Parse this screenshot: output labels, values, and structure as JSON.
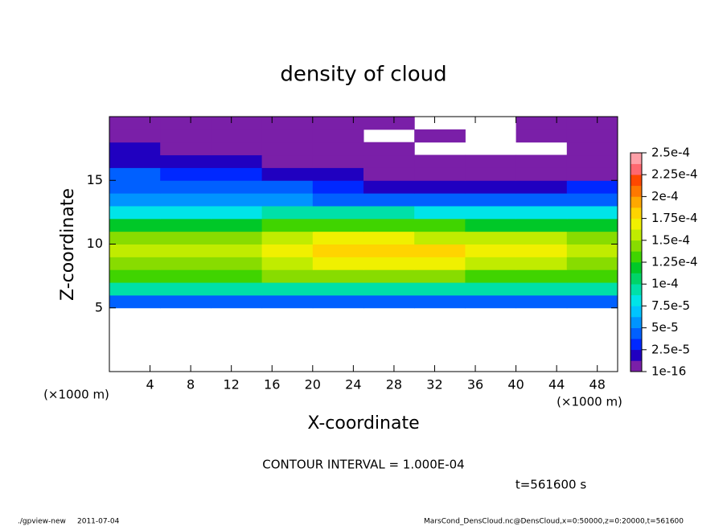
{
  "chart_data": {
    "type": "heatmap",
    "title": "density of cloud",
    "xlabel": "X-coordinate",
    "ylabel": "Z-coordinate",
    "x_unit": "(×1000 m)",
    "xlim": [
      0,
      50
    ],
    "ylim": [
      0,
      20
    ],
    "xticks": [
      4,
      8,
      12,
      16,
      20,
      24,
      28,
      32,
      36,
      40,
      44,
      48
    ],
    "yticks": [
      5,
      10,
      15
    ],
    "x": [
      2.5,
      7.5,
      12.5,
      17.5,
      22.5,
      27.5,
      32.5,
      37.5,
      42.5,
      47.5
    ],
    "y": [
      5.5,
      6.5,
      7.5,
      8.5,
      9.5,
      10.5,
      11.5,
      12.5,
      13.5,
      14.5,
      15.5,
      16.5,
      17.5,
      18.5,
      19.5
    ],
    "values": [
      [
        4e-05,
        4e-05,
        4e-05,
        4e-05,
        4e-05,
        4e-05,
        4e-05,
        4e-05,
        4e-05,
        4e-05
      ],
      [
        9e-05,
        9e-05,
        9e-05,
        9e-05,
        9e-05,
        9e-05,
        9e-05,
        9e-05,
        9e-05,
        9e-05
      ],
      [
        0.00013,
        0.00013,
        0.00013,
        0.00014,
        0.00014,
        0.00014,
        0.00014,
        0.00013,
        0.00013,
        0.00013
      ],
      [
        0.00015,
        0.00015,
        0.00015,
        0.00016,
        0.00017,
        0.00017,
        0.00017,
        0.00016,
        0.00016,
        0.00015
      ],
      [
        0.00016,
        0.00016,
        0.00016,
        0.00017,
        0.00018,
        0.00018,
        0.00018,
        0.00017,
        0.00017,
        0.00016
      ],
      [
        0.00015,
        0.00015,
        0.00015,
        0.00016,
        0.00017,
        0.00017,
        0.00016,
        0.00016,
        0.00016,
        0.00015
      ],
      [
        0.00012,
        0.00012,
        0.00012,
        0.00013,
        0.00013,
        0.00013,
        0.00013,
        0.00012,
        0.00012,
        0.00012
      ],
      [
        8e-05,
        8e-05,
        8e-05,
        9e-05,
        9e-05,
        9e-05,
        8e-05,
        8e-05,
        8e-05,
        8e-05
      ],
      [
        6e-05,
        6e-05,
        6e-05,
        6e-05,
        5e-05,
        4e-05,
        4e-05,
        4e-05,
        4e-05,
        5e-05
      ],
      [
        5e-05,
        5e-05,
        4e-05,
        4e-05,
        3e-05,
        2e-05,
        2e-05,
        2e-05,
        2e-05,
        3e-05
      ],
      [
        4e-05,
        3.5e-05,
        3e-05,
        2e-05,
        1.5e-05,
        1e-05,
        1e-05,
        8e-06,
        8e-06,
        1e-05
      ],
      [
        2.5e-05,
        2e-05,
        1.5e-05,
        1e-05,
        8e-06,
        6e-06,
        5e-06,
        5e-06,
        5e-06,
        6e-06
      ],
      [
        1.5e-05,
        1e-05,
        8e-06,
        6e-06,
        5e-06,
        5e-06,
        null,
        null,
        null,
        5e-06
      ],
      [
        8e-06,
        6e-06,
        5e-06,
        5e-06,
        5e-06,
        null,
        5e-06,
        null,
        5e-06,
        5e-06
      ],
      [
        5e-06,
        5e-06,
        5e-06,
        5e-06,
        5e-06,
        5e-06,
        null,
        null,
        5e-06,
        5e-06
      ]
    ],
    "clim": [
      1e-16,
      0.00025
    ],
    "cticks": [
      {
        "value": 1e-16,
        "label": "1e-16"
      },
      {
        "value": 2.5e-05,
        "label": "2.5e-5"
      },
      {
        "value": 5e-05,
        "label": "5e-5"
      },
      {
        "value": 7.5e-05,
        "label": "7.5e-5"
      },
      {
        "value": 0.0001,
        "label": "1e-4"
      },
      {
        "value": 0.000125,
        "label": "1.25e-4"
      },
      {
        "value": 0.00015,
        "label": "1.5e-4"
      },
      {
        "value": 0.000175,
        "label": "1.75e-4"
      },
      {
        "value": 0.0002,
        "label": "2e-4"
      },
      {
        "value": 0.000225,
        "label": "2.25e-4"
      },
      {
        "value": 0.00025,
        "label": "2.5e-4"
      }
    ],
    "colors": [
      "#7a1fa8",
      "#2000c0",
      "#0028ff",
      "#0060ff",
      "#0094ff",
      "#00c4ff",
      "#00e4e8",
      "#00e0a8",
      "#00d468",
      "#00c828",
      "#40d400",
      "#88dc00",
      "#c0ec00",
      "#f0f000",
      "#ffd400",
      "#ffa800",
      "#ff7800",
      "#ff4800",
      "#ff6870",
      "#ffa0a8"
    ],
    "contour_interval": "CONTOUR INTERVAL = 1.000E-04",
    "time": "t=561600 s",
    "footer_program": "./gpview-new",
    "footer_date": "2011-07-04",
    "footer_source": "MarsCond_DensCloud.nc@DensCloud,x=0:50000,z=0:20000,t=561600"
  }
}
